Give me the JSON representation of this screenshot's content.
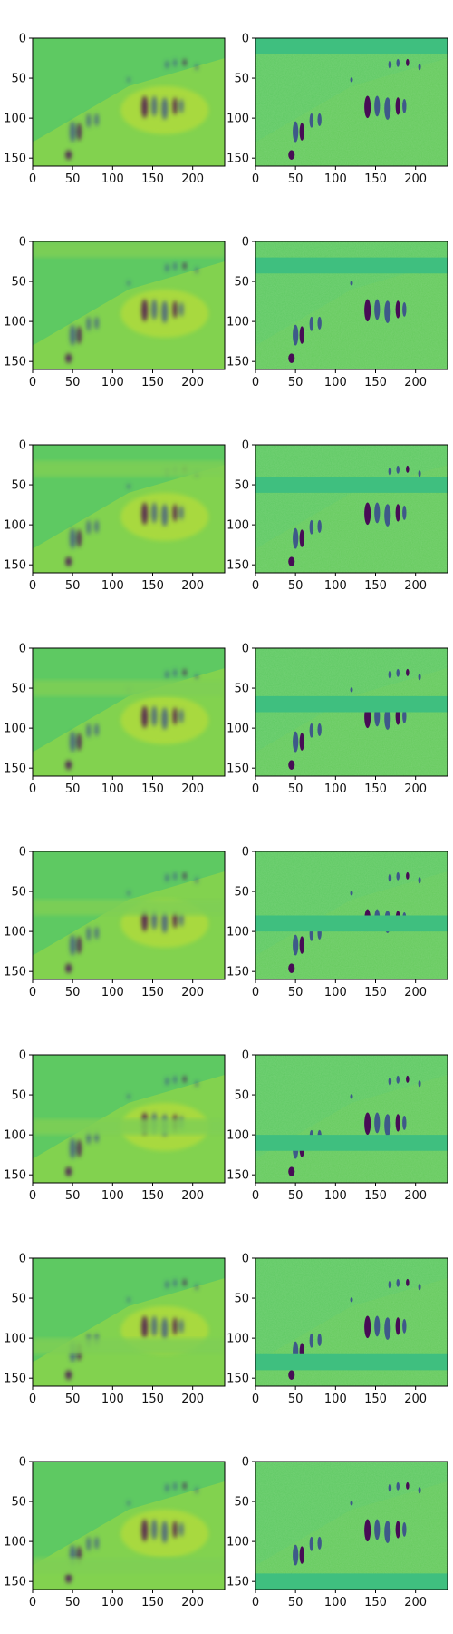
{
  "figure": {
    "rows": 8,
    "cols": 2,
    "colormap": [
      "#440154",
      "#3b528b",
      "#21918c",
      "#5ec962",
      "#fde725"
    ],
    "axes_color": "#000000",
    "background": "#ffffff"
  },
  "chart_data": {
    "type": "heatmap",
    "description_grid": "8x2 grid of image panels",
    "x_ticks": [
      0,
      50,
      100,
      150,
      200
    ],
    "y_ticks": [
      0,
      50,
      100,
      150
    ],
    "xlim": [
      0,
      240
    ],
    "ylim": [
      160,
      0
    ],
    "rows": [
      {
        "left_blur_band": [
          null,
          null
        ],
        "right_flat_band": [
          0,
          20
        ]
      },
      {
        "left_blur_band": [
          0,
          20
        ],
        "right_flat_band": [
          20,
          40
        ]
      },
      {
        "left_blur_band": [
          20,
          40
        ],
        "right_flat_band": [
          40,
          60
        ]
      },
      {
        "left_blur_band": [
          40,
          60
        ],
        "right_flat_band": [
          60,
          80
        ]
      },
      {
        "left_blur_band": [
          60,
          80
        ],
        "right_flat_band": [
          80,
          100
        ]
      },
      {
        "left_blur_band": [
          80,
          100
        ],
        "right_flat_band": [
          100,
          120
        ]
      },
      {
        "left_blur_band": [
          100,
          120
        ],
        "right_flat_band": [
          120,
          140
        ]
      },
      {
        "left_blur_band": [
          120,
          140
        ],
        "right_flat_band": [
          140,
          160
        ]
      }
    ],
    "figures": [
      {
        "x": 140,
        "y": 100,
        "w": 8,
        "h": 28
      },
      {
        "x": 152,
        "y": 98,
        "w": 7,
        "h": 26
      },
      {
        "x": 165,
        "y": 102,
        "w": 8,
        "h": 28
      },
      {
        "x": 178,
        "y": 96,
        "w": 6,
        "h": 22
      },
      {
        "x": 186,
        "y": 94,
        "w": 5,
        "h": 18
      },
      {
        "x": 50,
        "y": 130,
        "w": 7,
        "h": 26
      },
      {
        "x": 58,
        "y": 128,
        "w": 6,
        "h": 22
      },
      {
        "x": 70,
        "y": 112,
        "w": 5,
        "h": 18
      },
      {
        "x": 80,
        "y": 110,
        "w": 5,
        "h": 16
      },
      {
        "x": 45,
        "y": 152,
        "w": 8,
        "h": 12
      },
      {
        "x": 168,
        "y": 38,
        "w": 4,
        "h": 10
      },
      {
        "x": 178,
        "y": 36,
        "w": 4,
        "h": 10
      },
      {
        "x": 190,
        "y": 35,
        "w": 4,
        "h": 9
      },
      {
        "x": 205,
        "y": 40,
        "w": 3,
        "h": 8
      },
      {
        "x": 120,
        "y": 55,
        "w": 3,
        "h": 6
      }
    ]
  }
}
